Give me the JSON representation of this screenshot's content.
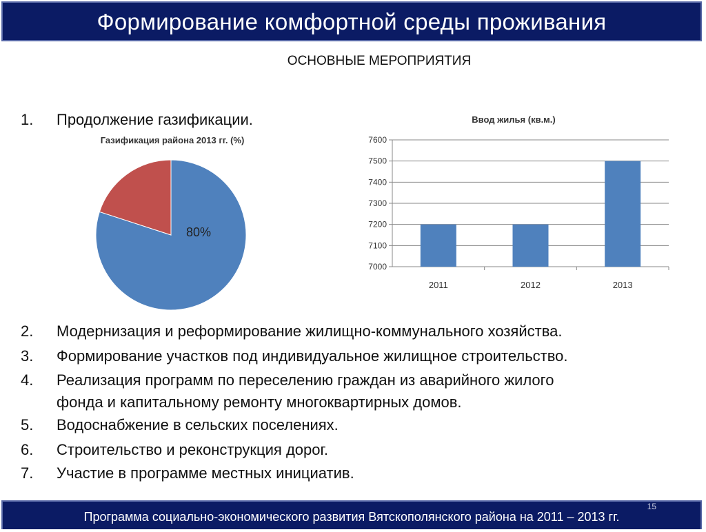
{
  "header": {
    "title": "Формирование комфортной среды проживания"
  },
  "subtitle": "ОСНОВНЫЕ МЕРОПРИЯТИЯ",
  "list": [
    {
      "num": "1.",
      "text": "Продолжение газификации."
    },
    {
      "num": "2.",
      "text": "Модернизация и реформирование жилищно-коммунального хозяйства."
    },
    {
      "num": "3.",
      "text": "Формирование участков под индивидуальное жилищное строительство."
    },
    {
      "num": "4.",
      "text": "Реализация программ по переселению граждан из аварийного жилого",
      "text2": "фонда и капитальному ремонту многоквартирных домов."
    },
    {
      "num": "5.",
      "text": "Водоснабжение в сельских поселениях."
    },
    {
      "num": "6.",
      "text": "Строительство и реконструкция дорог."
    },
    {
      "num": "7.",
      "text": "Участие в программе местных инициатив."
    }
  ],
  "chart_data": [
    {
      "type": "pie",
      "title": "Газификация района 2013 гг. (%)",
      "values": [
        80,
        20
      ],
      "colors": [
        "#4f81bd",
        "#c0504d"
      ],
      "data_labels": [
        "80%",
        ""
      ]
    },
    {
      "type": "bar",
      "title": "Ввод жилья (кв.м.)",
      "categories": [
        "2011",
        "2012",
        "2013"
      ],
      "values": [
        7200,
        7200,
        7500
      ],
      "ylim": [
        7000,
        7600
      ],
      "yticks": [
        7000,
        7100,
        7200,
        7300,
        7400,
        7500,
        7600
      ],
      "ytick_labels": [
        "7000",
        "7100",
        "7200",
        "7300",
        "7400",
        "7500",
        "7600"
      ],
      "grid": true,
      "color": "#4f81bd"
    }
  ],
  "footer": {
    "text": "Программа социально-экономического развития Вятскополянского района на 2011 – 2013 гг.",
    "page_number": "15"
  },
  "colors": {
    "header_bg": "#0b1b64",
    "header_border": "#5a6aa8"
  }
}
